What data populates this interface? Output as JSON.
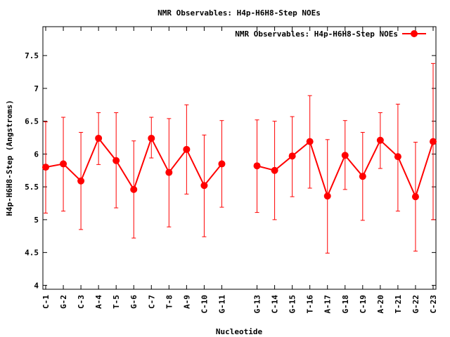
{
  "chart_data": {
    "type": "line",
    "title": "NMR Observables: H4p-H6H8-Step NOEs",
    "xlabel": "Nucleotide",
    "ylabel": "H4p-H6H8-Step (Angstroms)",
    "ylim": [
      3.94,
      7.94
    ],
    "yticks": [
      "4",
      "4.5",
      "5",
      "5.5",
      "6",
      "6.5",
      "7",
      "7.5"
    ],
    "grid": false,
    "legend_position": "top-right",
    "series_color": "#ff0000",
    "series": [
      {
        "name": "NMR Observables: H4p-H6H8-Step NOEs",
        "points": [
          {
            "label": "C-1",
            "pos": 1,
            "y": 5.8,
            "err_low": 5.1,
            "err_high": 6.49
          },
          {
            "label": "G-2",
            "pos": 2,
            "y": 5.85,
            "err_low": 5.13,
            "err_high": 6.56
          },
          {
            "label": "C-3",
            "pos": 3,
            "y": 5.59,
            "err_low": 4.85,
            "err_high": 6.33
          },
          {
            "label": "A-4",
            "pos": 4,
            "y": 6.24,
            "err_low": 5.84,
            "err_high": 6.63
          },
          {
            "label": "T-5",
            "pos": 5,
            "y": 5.9,
            "err_low": 5.18,
            "err_high": 6.63
          },
          {
            "label": "G-6",
            "pos": 6,
            "y": 5.46,
            "err_low": 4.72,
            "err_high": 6.2
          },
          {
            "label": "C-7",
            "pos": 7,
            "y": 6.24,
            "err_low": 5.94,
            "err_high": 6.56
          },
          {
            "label": "T-8",
            "pos": 8,
            "y": 5.72,
            "err_low": 4.89,
            "err_high": 6.54
          },
          {
            "label": "A-9",
            "pos": 9,
            "y": 6.07,
            "err_low": 5.39,
            "err_high": 6.75
          },
          {
            "label": "C-10",
            "pos": 10,
            "y": 5.52,
            "err_low": 4.74,
            "err_high": 6.29
          },
          {
            "label": "G-11",
            "pos": 11,
            "y": 5.85,
            "err_low": 5.19,
            "err_high": 6.51
          },
          {
            "label": "G-13",
            "pos": 13,
            "y": 5.82,
            "err_low": 5.11,
            "err_high": 6.52
          },
          {
            "label": "C-14",
            "pos": 14,
            "y": 5.75,
            "err_low": 5.0,
            "err_high": 6.5
          },
          {
            "label": "G-15",
            "pos": 15,
            "y": 5.97,
            "err_low": 5.35,
            "err_high": 6.57
          },
          {
            "label": "T-16",
            "pos": 16,
            "y": 6.19,
            "err_low": 5.48,
            "err_high": 6.89
          },
          {
            "label": "A-17",
            "pos": 17,
            "y": 5.36,
            "err_low": 4.49,
            "err_high": 6.22
          },
          {
            "label": "G-18",
            "pos": 18,
            "y": 5.98,
            "err_low": 5.46,
            "err_high": 6.51
          },
          {
            "label": "C-19",
            "pos": 19,
            "y": 5.66,
            "err_low": 4.99,
            "err_high": 6.33
          },
          {
            "label": "A-20",
            "pos": 20,
            "y": 6.21,
            "err_low": 5.78,
            "err_high": 6.63
          },
          {
            "label": "T-21",
            "pos": 21,
            "y": 5.96,
            "err_low": 5.13,
            "err_high": 6.76
          },
          {
            "label": "G-22",
            "pos": 22,
            "y": 5.35,
            "err_low": 4.52,
            "err_high": 6.18
          },
          {
            "label": "C-23",
            "pos": 23,
            "y": 6.19,
            "err_low": 5.0,
            "err_high": 7.38
          }
        ]
      }
    ]
  }
}
